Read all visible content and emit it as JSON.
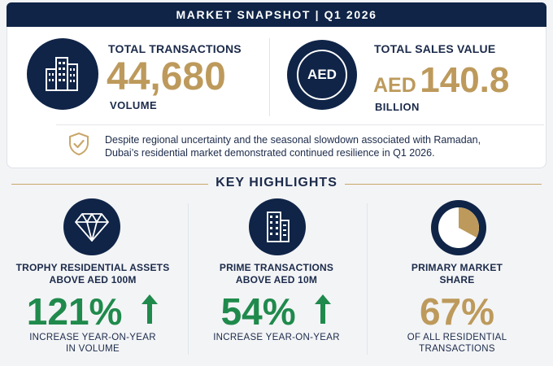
{
  "header": {
    "title": "MARKET SNAPSHOT  |  Q1 2026"
  },
  "snapshot": {
    "transactions": {
      "label": "TOTAL TRANSACTIONS",
      "value": "44,680",
      "sub": "VOLUME",
      "icon": "buildings-icon"
    },
    "sales": {
      "label": "TOTAL SALES VALUE",
      "currency_badge": "AED",
      "value_prefix": "AED",
      "value": "140.8",
      "sub": "BILLION"
    },
    "note": {
      "icon": "shield-check-icon",
      "line1": "Despite regional uncertainty and the seasonal slowdown associated with Ramadan,",
      "line2": "Dubai’s residential market demonstrated continued resilience in Q1 2026."
    }
  },
  "highlights": {
    "title": "KEY HIGHLIGHTS",
    "items": [
      {
        "icon": "diamond-icon",
        "title_line1": "TROPHY RESIDENTIAL ASSETS",
        "title_line2": "ABOVE AED 100M",
        "value": "121%",
        "trend": "up",
        "desc_line1": "INCREASE YEAR-ON-YEAR",
        "desc_line2": "IN VOLUME"
      },
      {
        "icon": "building-icon",
        "title_line1": "PRIME TRANSACTIONS",
        "title_line2": "ABOVE AED 10M",
        "value": "54%",
        "trend": "up",
        "desc_line1": "INCREASE YEAR-ON-YEAR",
        "desc_line2": ""
      },
      {
        "icon": "pie-chart-icon",
        "title_line1": "PRIMARY MARKET",
        "title_line2": "SHARE",
        "value": "67%",
        "share_fraction": 0.67,
        "desc_line1": "OF ALL RESIDENTIAL",
        "desc_line2": "TRANSACTIONS"
      }
    ]
  },
  "colors": {
    "navy": "#0f2447",
    "gold": "#bd9a5c",
    "green": "#1f8a4c"
  }
}
